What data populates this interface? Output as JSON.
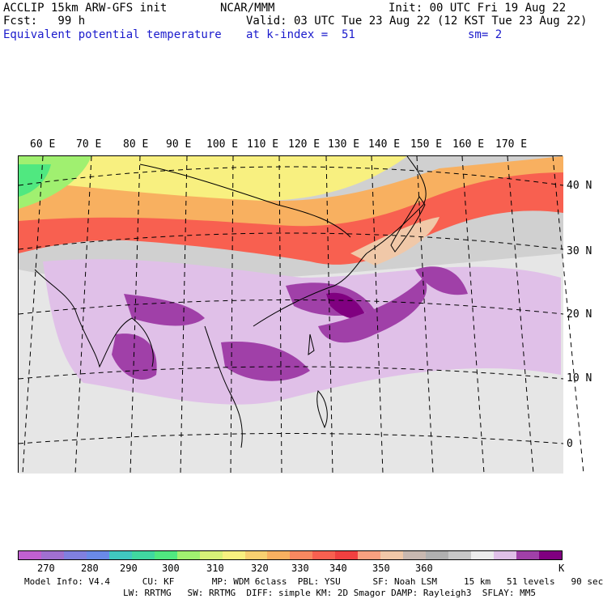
{
  "header": {
    "model": "ACCLIP 15km ARW-GFS init",
    "org": "NCAR/MMM",
    "init": "Init: 00 UTC Fri 19 Aug 22",
    "fcst": "Fcst:   99 h",
    "valid": "Valid: 03 UTC Tue 23 Aug 22 (12 KST Tue 23 Aug 22)",
    "field": "Equivalent potential temperature",
    "level": "at k-index =  51",
    "smooth": "sm= 2"
  },
  "map": {
    "lon_labels": [
      "60 E",
      "70 E",
      "80 E",
      "90 E",
      "100 E",
      "110 E",
      "120 E",
      "130 E",
      "140 E",
      "150 E",
      "160 E",
      "170 E"
    ],
    "lat_labels": [
      "40 N",
      "30 N",
      "20 N",
      "10 N",
      "0"
    ]
  },
  "colorbar": {
    "colors": [
      "#c060d0",
      "#a070d0",
      "#8080e0",
      "#6a8ae8",
      "#40c8c0",
      "#40d8a0",
      "#50e880",
      "#a0f070",
      "#d8f078",
      "#f8f080",
      "#f8d070",
      "#f8b060",
      "#f88860",
      "#f86050",
      "#f04040",
      "#f8a080",
      "#f0c8a8",
      "#c8b8b0",
      "#b0b0b0",
      "#c8c8c8",
      "#ececec",
      "#e0c0e8",
      "#a040a8",
      "#800080"
    ],
    "ticks": [
      "270",
      "280",
      "290",
      "300",
      "310",
      "320",
      "330",
      "340",
      "350",
      "360"
    ],
    "unit": "K"
  },
  "footer": {
    "line1": "Model Info: V4.4      CU: KF       MP: WDM 6class  PBL: YSU      SF: Noah LSM     15 km   51 levels   90 sec",
    "line2": "LW: RRTMG   SW: RRTMG  DIFF: simple KM: 2D Smagor DAMP: Rayleigh3  SFLAY: MM5"
  }
}
